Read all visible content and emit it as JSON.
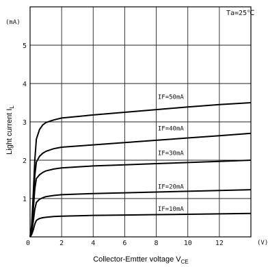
{
  "chart_data": {
    "type": "line",
    "title": "",
    "condition": "Ta=25℃",
    "xlabel": "Collector-Emtter voltage V",
    "xlabel_sub": "CE",
    "ylabel": "Light current I",
    "ylabel_sub": "L",
    "x_unit": "(V)",
    "y_unit": "(mA)",
    "xlim": [
      0,
      14
    ],
    "ylim": [
      0,
      6
    ],
    "x_ticks": [
      0,
      2,
      4,
      6,
      8,
      10,
      12
    ],
    "x_tick_labels": [
      "0",
      "2",
      "4",
      "6",
      "8",
      "10",
      "12"
    ],
    "x_grid": [
      0,
      2,
      4,
      6,
      8,
      10,
      12,
      14
    ],
    "y_ticks": [
      1,
      2,
      3,
      4,
      5
    ],
    "y_tick_labels": [
      "1",
      "2",
      "3",
      "4",
      "5"
    ],
    "y_grid": [
      0,
      1,
      2,
      3,
      4,
      5,
      6
    ],
    "grid": true,
    "series": [
      {
        "name": "IF=10mA",
        "label_at": [
          8.1,
          0.68
        ],
        "x": [
          0.1,
          0.2,
          0.3,
          0.4,
          0.6,
          0.8,
          1.0,
          1.5,
          2,
          4,
          6,
          8,
          10,
          12,
          14
        ],
        "y": [
          0.06,
          0.18,
          0.33,
          0.43,
          0.48,
          0.5,
          0.51,
          0.53,
          0.54,
          0.56,
          0.57,
          0.58,
          0.59,
          0.6,
          0.61
        ]
      },
      {
        "name": "IF=20mA",
        "label_at": [
          8.1,
          1.26
        ],
        "x": [
          0.1,
          0.2,
          0.3,
          0.4,
          0.6,
          0.8,
          1.0,
          1.5,
          2,
          4,
          6,
          8,
          10,
          12,
          14
        ],
        "y": [
          0.12,
          0.4,
          0.72,
          0.9,
          0.98,
          1.02,
          1.05,
          1.08,
          1.1,
          1.13,
          1.15,
          1.17,
          1.19,
          1.21,
          1.23
        ]
      },
      {
        "name": "IF=30mA",
        "label_at": [
          8.1,
          2.13
        ],
        "x": [
          0.1,
          0.2,
          0.3,
          0.4,
          0.6,
          0.8,
          1.0,
          1.5,
          2,
          4,
          6,
          8,
          10,
          12,
          14
        ],
        "y": [
          0.2,
          0.7,
          1.25,
          1.52,
          1.62,
          1.68,
          1.72,
          1.77,
          1.8,
          1.85,
          1.88,
          1.91,
          1.94,
          1.97,
          2.0
        ]
      },
      {
        "name": "IF=40mA",
        "label_at": [
          8.1,
          2.78
        ],
        "x": [
          0.1,
          0.2,
          0.3,
          0.4,
          0.6,
          0.8,
          1.0,
          1.5,
          2,
          4,
          6,
          8,
          10,
          12,
          14
        ],
        "y": [
          0.25,
          0.9,
          1.6,
          1.95,
          2.1,
          2.18,
          2.23,
          2.3,
          2.34,
          2.4,
          2.46,
          2.52,
          2.58,
          2.64,
          2.7
        ]
      },
      {
        "name": "IF=50mA",
        "label_at": [
          8.1,
          3.6
        ],
        "x": [
          0.1,
          0.2,
          0.3,
          0.4,
          0.6,
          0.8,
          1.0,
          1.5,
          2,
          4,
          6,
          8,
          10,
          12,
          14
        ],
        "y": [
          0.3,
          1.1,
          2.0,
          2.55,
          2.8,
          2.92,
          2.98,
          3.05,
          3.1,
          3.18,
          3.25,
          3.32,
          3.39,
          3.45,
          3.5
        ]
      }
    ]
  }
}
